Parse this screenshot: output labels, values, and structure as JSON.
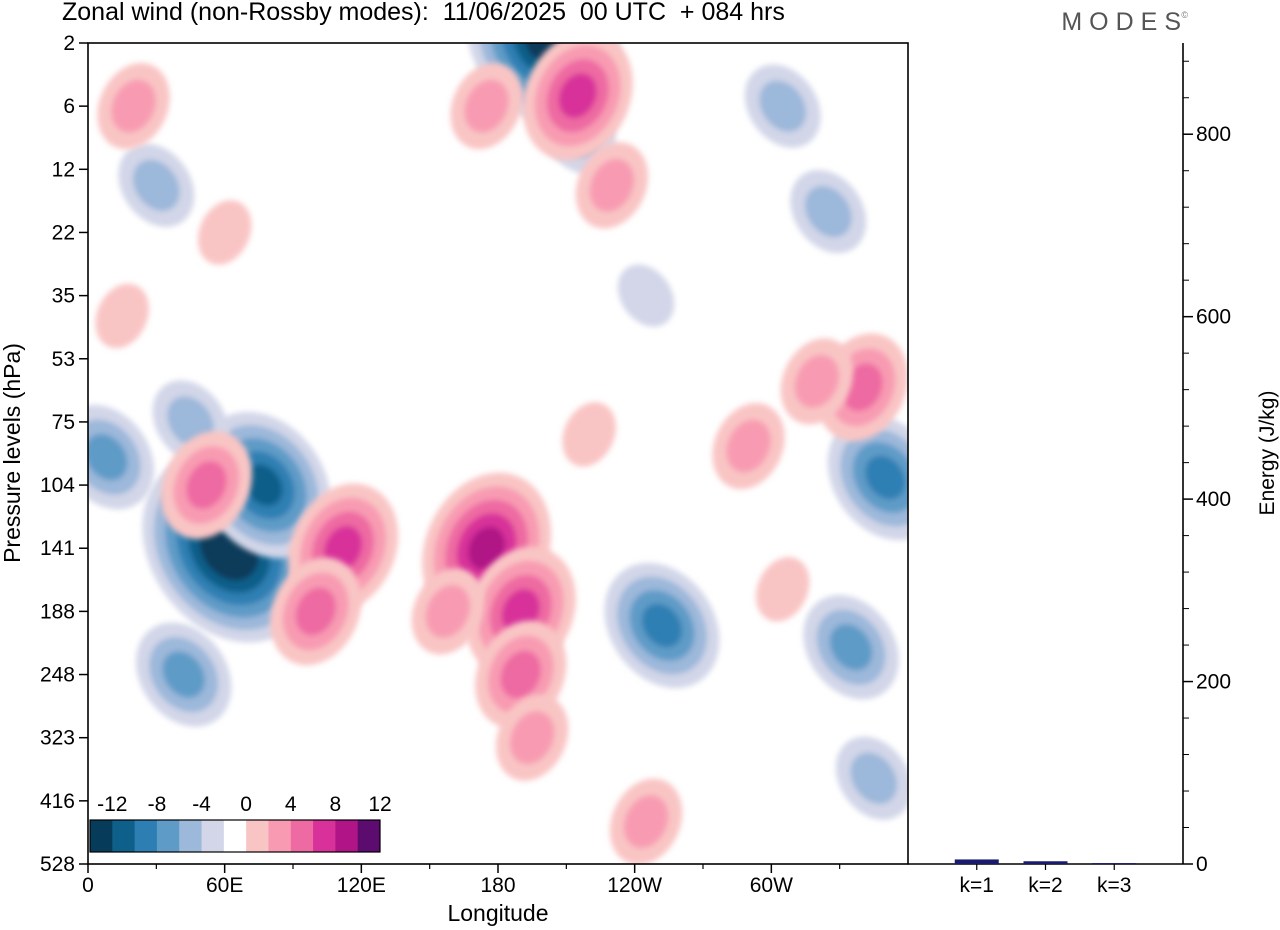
{
  "header": {
    "title": "Zonal wind (non-Rossby modes):  11/06/2025  00 UTC  + 084 hrs",
    "brand": "MODES",
    "brand_mark": "©"
  },
  "chart_data": [
    {
      "type": "heatmap",
      "title": "Zonal wind (non-Rossby modes):  11/06/2025  00 UTC  + 084 hrs",
      "xlabel": "Longitude",
      "ylabel": "Pressure levels (hPa)",
      "x_ticks": [
        "0",
        "60E",
        "120E",
        "180",
        "120W",
        "60W"
      ],
      "x_range_deg_east": [
        0,
        360
      ],
      "y_ticks": [
        "2",
        "6",
        "12",
        "22",
        "35",
        "53",
        "75",
        "104",
        "141",
        "188",
        "248",
        "323",
        "416",
        "528"
      ],
      "y_direction": "pressure increases downward, top 2 hPa, bottom 528 hPa",
      "colorbar": {
        "tick_labels": [
          "-12",
          "-8",
          "-4",
          "0",
          "4",
          "8",
          "12"
        ],
        "levels": [
          -14,
          -12,
          -10,
          -8,
          -6,
          -4,
          -2,
          2,
          4,
          6,
          8,
          10,
          12,
          14
        ],
        "colors": [
          "#073b5a",
          "#0e5f8a",
          "#2d7fb3",
          "#5f9bc7",
          "#9cb8da",
          "#d2d6e8",
          "#ffffff",
          "#f9c5c4",
          "#f89bb2",
          "#ee6aa2",
          "#d8329a",
          "#b01486",
          "#5c0c6f"
        ],
        "placement": "bottom-left inside plot"
      },
      "features": [
        {
          "lon": 62,
          "level": 141,
          "value": -14
        },
        {
          "lon": 77,
          "level": 104,
          "value": -10
        },
        {
          "lon": 42,
          "level": 248,
          "value": -6
        },
        {
          "lon": 8,
          "level": 90,
          "value": -6
        },
        {
          "lon": 45,
          "level": 75,
          "value": -4
        },
        {
          "lon": 200,
          "level": 2,
          "value": -12
        },
        {
          "lon": 215,
          "level": 8,
          "value": -4
        },
        {
          "lon": 305,
          "level": 6,
          "value": -4
        },
        {
          "lon": 325,
          "level": 18,
          "value": -4
        },
        {
          "lon": 30,
          "level": 14,
          "value": -4
        },
        {
          "lon": 252,
          "level": 200,
          "value": -8
        },
        {
          "lon": 335,
          "level": 220,
          "value": -6
        },
        {
          "lon": 350,
          "level": 100,
          "value": -8
        },
        {
          "lon": 345,
          "level": 380,
          "value": -4
        },
        {
          "lon": 245,
          "level": 35,
          "value": -2
        },
        {
          "lon": 52,
          "level": 104,
          "value": 6
        },
        {
          "lon": 112,
          "level": 141,
          "value": 8
        },
        {
          "lon": 100,
          "level": 188,
          "value": 6
        },
        {
          "lon": 175,
          "level": 141,
          "value": 10
        },
        {
          "lon": 190,
          "level": 188,
          "value": 8
        },
        {
          "lon": 190,
          "level": 248,
          "value": 6
        },
        {
          "lon": 195,
          "level": 323,
          "value": 4
        },
        {
          "lon": 158,
          "level": 188,
          "value": 4
        },
        {
          "lon": 215,
          "level": 5,
          "value": 8
        },
        {
          "lon": 175,
          "level": 6,
          "value": 4
        },
        {
          "lon": 230,
          "level": 14,
          "value": 4
        },
        {
          "lon": 340,
          "level": 62,
          "value": 6
        },
        {
          "lon": 290,
          "level": 85,
          "value": 4
        },
        {
          "lon": 320,
          "level": 60,
          "value": 4
        },
        {
          "lon": 60,
          "level": 22,
          "value": 2
        },
        {
          "lon": 20,
          "level": 6,
          "value": 4
        },
        {
          "lon": 245,
          "level": 450,
          "value": 4
        },
        {
          "lon": 220,
          "level": 80,
          "value": 2
        },
        {
          "lon": 15,
          "level": 40,
          "value": 2
        },
        {
          "lon": 305,
          "level": 170,
          "value": 2
        }
      ]
    },
    {
      "type": "bar",
      "ylabel": "Energy (J/kg)",
      "categories": [
        "k=1",
        "k=2",
        "k=3"
      ],
      "values": [
        5,
        3,
        1
      ],
      "ylim": [
        0,
        900
      ],
      "y_ticks": [
        "0",
        "200",
        "400",
        "600",
        "800"
      ],
      "bar_color": "#1a1a6e"
    }
  ]
}
